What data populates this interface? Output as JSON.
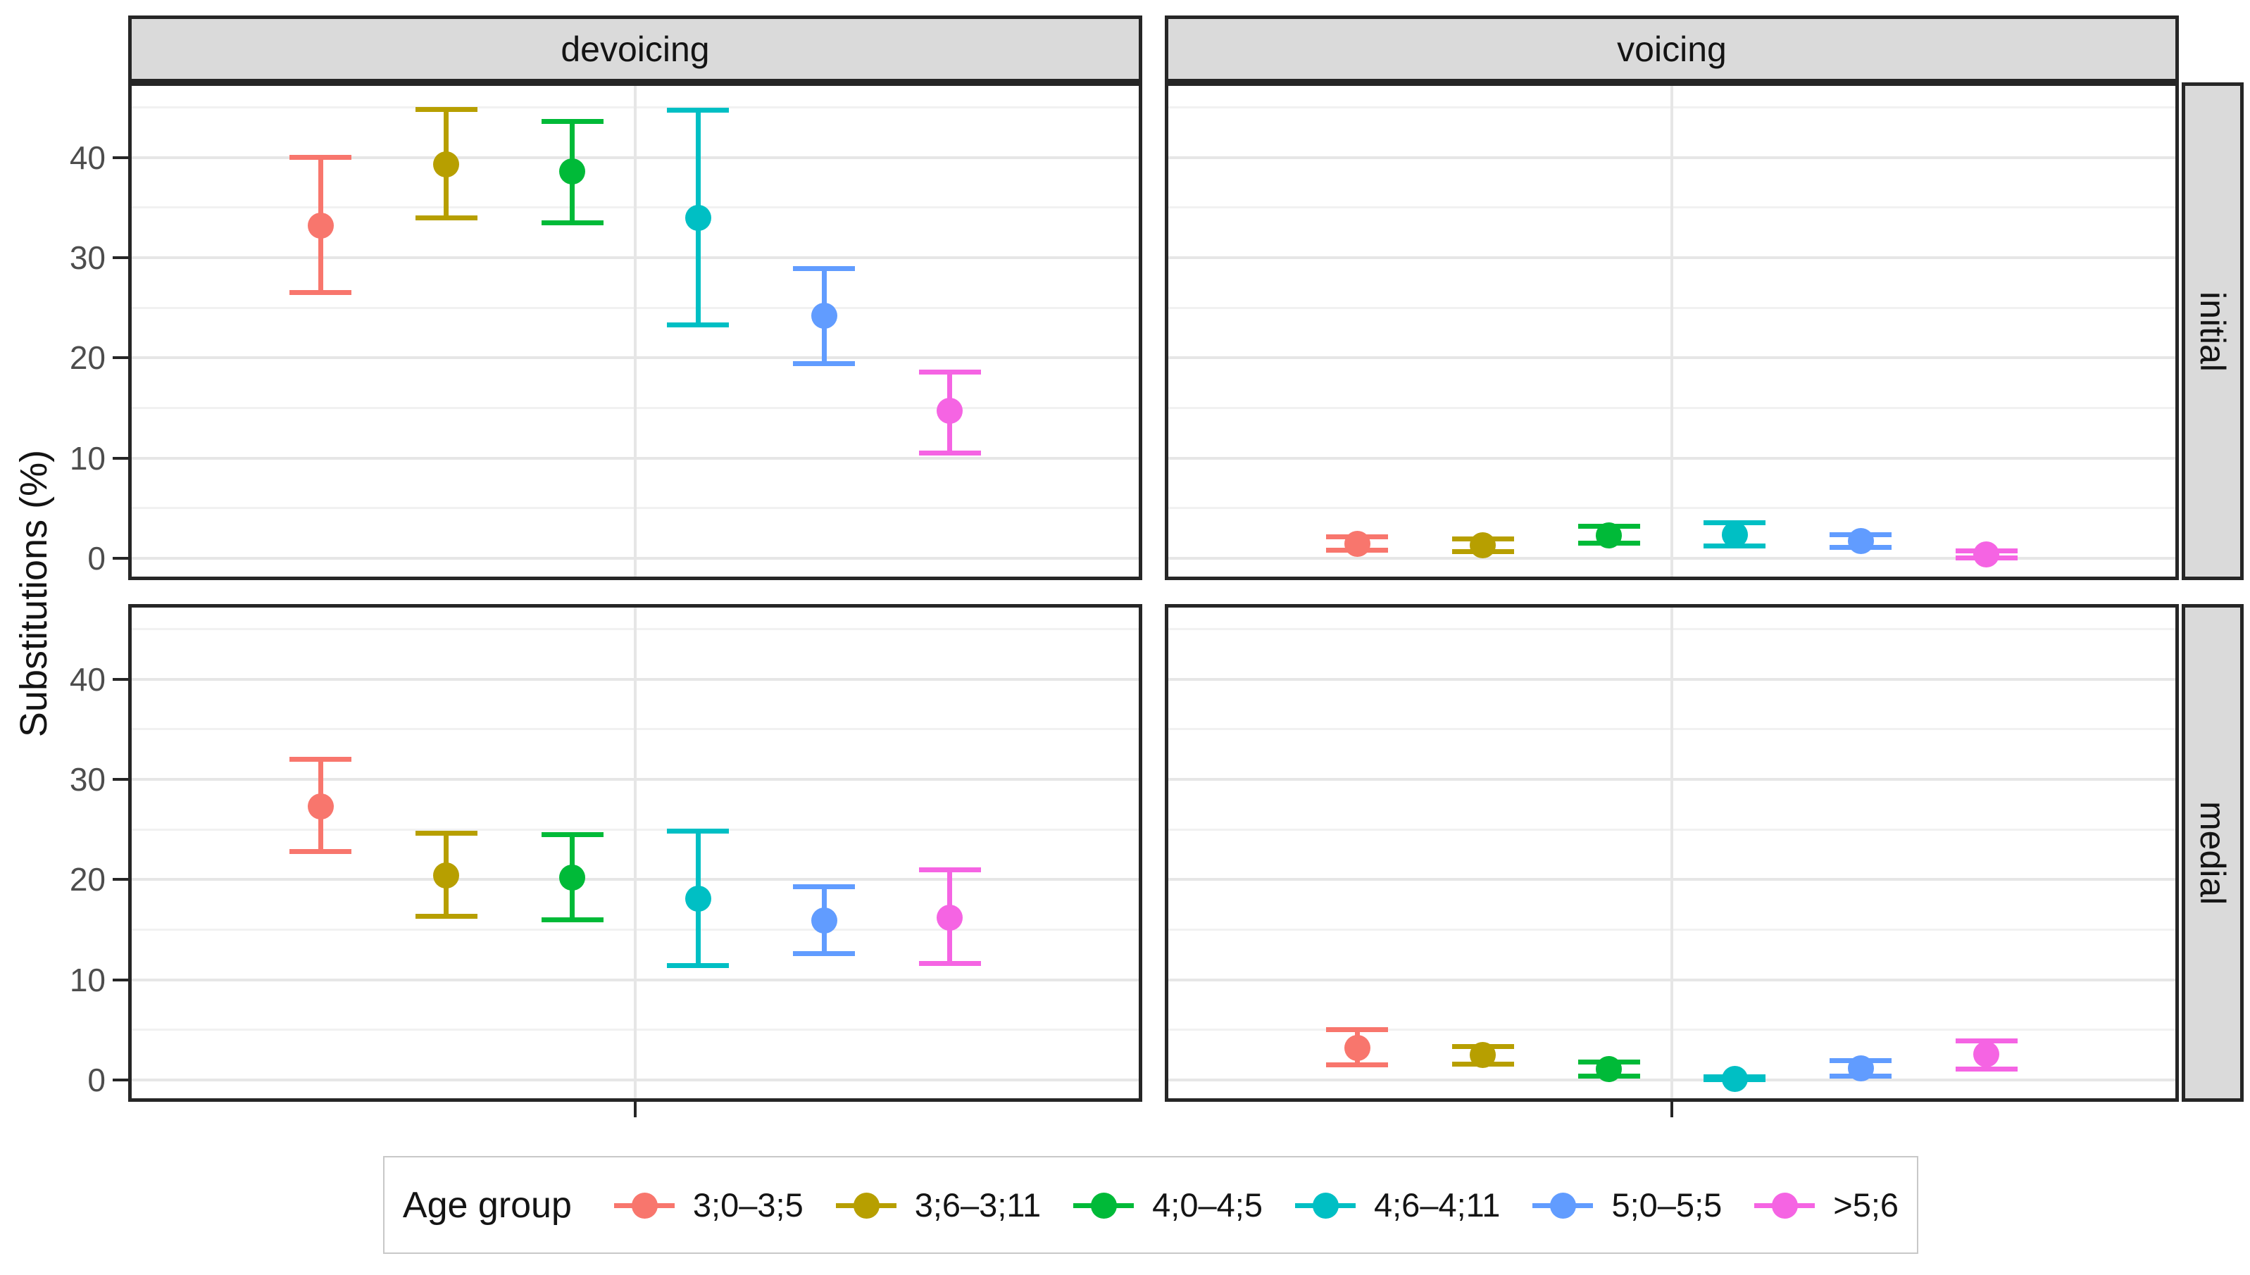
{
  "chart_data": {
    "type": "pointrange",
    "ylabel": "Substitutions (%)",
    "xlabel": "",
    "ylim": [
      -2.2,
      47.5
    ],
    "y_major_ticks": [
      0,
      10,
      20,
      30,
      40
    ],
    "y_minor_gridlines": [
      5,
      15,
      25,
      35,
      45
    ],
    "grid": "on",
    "legend_position": "bottom",
    "legend_title": "Age group",
    "facet_cols": [
      "devoicing",
      "voicing"
    ],
    "facet_rows": [
      "initial",
      "medial"
    ],
    "groups": [
      {
        "label": "3;0–3;5",
        "color": "#F8766D"
      },
      {
        "label": "3;6–3;11",
        "color": "#B79F00"
      },
      {
        "label": "4;0–4;5",
        "color": "#00BA38"
      },
      {
        "label": "4;6–4;11",
        "color": "#00BFC4"
      },
      {
        "label": "5;0–5;5",
        "color": "#619CFF"
      },
      {
        "label": ">5;6",
        "color": "#F564E3"
      }
    ],
    "panels": [
      {
        "col": "devoicing",
        "row": "initial",
        "points": [
          {
            "group": "3;0–3;5",
            "mean": 33.2,
            "lower": 26.5,
            "upper": 40.0
          },
          {
            "group": "3;6–3;11",
            "mean": 39.3,
            "lower": 34.0,
            "upper": 44.8
          },
          {
            "group": "4;0–4;5",
            "mean": 38.6,
            "lower": 33.5,
            "upper": 43.6
          },
          {
            "group": "4;6–4;11",
            "mean": 34.0,
            "lower": 23.3,
            "upper": 44.7
          },
          {
            "group": "5;0–5;5",
            "mean": 24.2,
            "lower": 19.4,
            "upper": 28.9
          },
          {
            "group": ">5;6",
            "mean": 14.7,
            "lower": 10.5,
            "upper": 18.6
          }
        ]
      },
      {
        "col": "voicing",
        "row": "initial",
        "points": [
          {
            "group": "3;0–3;5",
            "mean": 1.45,
            "lower": 0.8,
            "upper": 2.1
          },
          {
            "group": "3;6–3;11",
            "mean": 1.3,
            "lower": 0.65,
            "upper": 1.9
          },
          {
            "group": "4;0–4;5",
            "mean": 2.3,
            "lower": 1.5,
            "upper": 3.2
          },
          {
            "group": "4;6–4;11",
            "mean": 2.35,
            "lower": 1.2,
            "upper": 3.5
          },
          {
            "group": "5;0–5;5",
            "mean": 1.7,
            "lower": 1.05,
            "upper": 2.35
          },
          {
            "group": ">5;6",
            "mean": 0.35,
            "lower": 0.0,
            "upper": 0.75
          }
        ]
      },
      {
        "col": "devoicing",
        "row": "medial",
        "points": [
          {
            "group": "3;0–3;5",
            "mean": 27.3,
            "lower": 22.8,
            "upper": 32.0
          },
          {
            "group": "3;6–3;11",
            "mean": 20.4,
            "lower": 16.3,
            "upper": 24.6
          },
          {
            "group": "4;0–4;5",
            "mean": 20.2,
            "lower": 16.0,
            "upper": 24.5
          },
          {
            "group": "4;6–4;11",
            "mean": 18.1,
            "lower": 11.4,
            "upper": 24.8
          },
          {
            "group": "5;0–5;5",
            "mean": 15.9,
            "lower": 12.6,
            "upper": 19.3
          },
          {
            "group": ">5;6",
            "mean": 16.2,
            "lower": 11.6,
            "upper": 21.0
          }
        ]
      },
      {
        "col": "voicing",
        "row": "medial",
        "points": [
          {
            "group": "3;0–3;5",
            "mean": 3.2,
            "lower": 1.5,
            "upper": 5.0
          },
          {
            "group": "3;6–3;11",
            "mean": 2.45,
            "lower": 1.55,
            "upper": 3.3
          },
          {
            "group": "4;0–4;5",
            "mean": 1.1,
            "lower": 0.4,
            "upper": 1.8
          },
          {
            "group": "4;6–4;11",
            "mean": 0.1,
            "lower": 0.0,
            "upper": 0.3
          },
          {
            "group": "5;0–5;5",
            "mean": 1.15,
            "lower": 0.4,
            "upper": 1.9
          },
          {
            "group": ">5;6",
            "mean": 2.55,
            "lower": 1.1,
            "upper": 3.9
          }
        ]
      }
    ],
    "y_tick_labels": [
      "0",
      "10",
      "20",
      "30",
      "40"
    ]
  },
  "styles": {
    "panel_border": "#262626",
    "strip_bg": "#DADADA",
    "grid_major": "#E6E6E6",
    "grid_minor": "#F1F1F1",
    "tick_label_color": "#4D4D4D",
    "text_color": "#141414",
    "legend_border": "#C8C8C8",
    "background": "#FFFFFF"
  }
}
